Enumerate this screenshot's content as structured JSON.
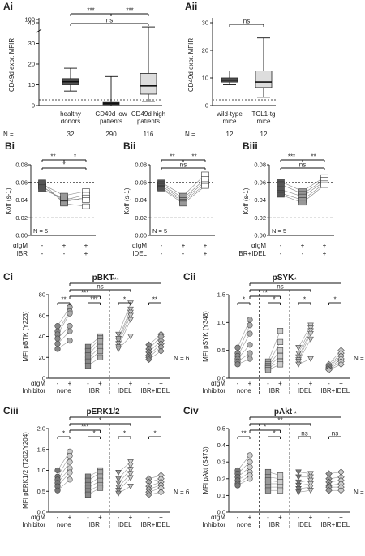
{
  "chart_data": [
    {
      "panel": "Ai",
      "type": "box",
      "ylabel": "CD49d expr. MFIR",
      "yticks": [
        "0",
        "10",
        "20",
        "30",
        "40",
        "100"
      ],
      "categories": [
        "healthy donors",
        "CD49d low patients",
        "CD49d high patients"
      ],
      "n_label": "N =",
      "n": [
        "32",
        "290",
        "116"
      ],
      "boxes": [
        {
          "min": 7,
          "q1": 10,
          "median": 11.5,
          "q3": 13,
          "max": 18,
          "fill": "#555555"
        },
        {
          "min": 0,
          "q1": 0.5,
          "median": 1,
          "q3": 1.5,
          "max": 14,
          "fill": "#555555"
        },
        {
          "min": 2,
          "q1": 5.5,
          "median": 9.5,
          "q3": 15.5,
          "max": 38,
          "fill": "#dddddd"
        }
      ],
      "significance": [
        {
          "from": 0,
          "to": 1,
          "label": "***"
        },
        {
          "from": 1,
          "to": 2,
          "label": "***"
        },
        {
          "from": 0,
          "to": 2,
          "label": "ns"
        }
      ]
    },
    {
      "panel": "Aii",
      "type": "box",
      "ylabel": "CD49d expr. MFIR",
      "yticks": [
        "0",
        "10",
        "20",
        "30"
      ],
      "categories": [
        "wild-type mice",
        "TCL1-tg mice"
      ],
      "n_label": "N =",
      "n": [
        "12",
        "12"
      ],
      "boxes": [
        {
          "min": 7.5,
          "q1": 8.5,
          "median": 9.2,
          "q3": 10,
          "max": 12.5,
          "fill": "#555555"
        },
        {
          "min": 3,
          "q1": 6.5,
          "median": 8.5,
          "q3": 12.5,
          "max": 24.5,
          "fill": "#dddddd"
        }
      ],
      "significance": [
        {
          "from": 0,
          "to": 1,
          "label": "ns"
        }
      ]
    },
    {
      "panel": "Bi",
      "type": "paired",
      "ylabel": "Koff (s-1)",
      "yticks": [
        "0.00",
        "0.02",
        "0.04",
        "0.06",
        "0.08"
      ],
      "ylim": [
        0,
        0.08
      ],
      "n_label": "N = 5",
      "treat_rows": [
        {
          "label": "αIgM",
          "values": [
            "-",
            "+",
            "+"
          ]
        },
        {
          "label": "IBR",
          "values": [
            "-",
            "-",
            "+"
          ]
        }
      ],
      "groups": [
        {
          "values": [
            0.058,
            0.055,
            0.056,
            0.052,
            0.06
          ],
          "fill": "#555555"
        },
        {
          "values": [
            0.045,
            0.04,
            0.038,
            0.042,
            0.036
          ],
          "fill": "#999999"
        },
        {
          "values": [
            0.05,
            0.046,
            0.043,
            0.04,
            0.033
          ],
          "fill": "#ffffff"
        }
      ],
      "significance": [
        {
          "from": 0,
          "to": 1,
          "label": "**"
        },
        {
          "from": 1,
          "to": 2,
          "label": "*"
        },
        {
          "from": 0,
          "to": 2,
          "label": "*"
        }
      ]
    },
    {
      "panel": "Bii",
      "type": "paired",
      "ylabel": "Koff (s-1)",
      "yticks": [
        "0.00",
        "0.02",
        "0.04",
        "0.06",
        "0.08"
      ],
      "ylim": [
        0,
        0.08
      ],
      "n_label": "N = 5",
      "treat_rows": [
        {
          "label": "αIgM",
          "values": [
            "-",
            "+",
            "+"
          ]
        },
        {
          "label": "IDEL",
          "values": [
            "-",
            "-",
            "+"
          ]
        }
      ],
      "groups": [
        {
          "values": [
            0.06,
            0.058,
            0.056,
            0.054,
            0.053
          ],
          "fill": "#555555"
        },
        {
          "values": [
            0.045,
            0.042,
            0.04,
            0.038,
            0.036
          ],
          "fill": "#999999"
        },
        {
          "values": [
            0.069,
            0.064,
            0.061,
            0.058,
            0.056
          ],
          "fill": "#ffffff"
        }
      ],
      "significance": [
        {
          "from": 0,
          "to": 1,
          "label": "**"
        },
        {
          "from": 1,
          "to": 2,
          "label": "**"
        },
        {
          "from": 0,
          "to": 2,
          "label": "ns"
        }
      ]
    },
    {
      "panel": "Biii",
      "type": "paired",
      "ylabel": "Koff (s-1)",
      "yticks": [
        "0.00",
        "0.02",
        "0.04",
        "0.06",
        "0.08"
      ],
      "ylim": [
        0,
        0.08
      ],
      "n_label": "N = 5",
      "treat_rows": [
        {
          "label": "αIgM",
          "values": [
            "-",
            "+",
            "+"
          ]
        },
        {
          "label": "IBR+IDEL",
          "values": [
            "-",
            "-",
            "+"
          ]
        }
      ],
      "groups": [
        {
          "values": [
            0.061,
            0.058,
            0.052,
            0.048,
            0.046
          ],
          "fill": "#555555"
        },
        {
          "values": [
            0.05,
            0.047,
            0.044,
            0.04,
            0.037
          ],
          "fill": "#999999"
        },
        {
          "values": [
            0.066,
            0.063,
            0.061,
            0.059,
            0.057
          ],
          "fill": "#ffffff"
        }
      ],
      "significance": [
        {
          "from": 0,
          "to": 1,
          "label": "***"
        },
        {
          "from": 1,
          "to": 2,
          "label": "**"
        },
        {
          "from": 0,
          "to": 2,
          "label": "ns"
        }
      ]
    },
    {
      "panel": "Ci",
      "type": "grouped_paired",
      "title": "pBKT",
      "ylabel": "MFI pBTK (Y223)",
      "yticks": [
        "0",
        "20",
        "40",
        "60",
        "80"
      ],
      "ylim": [
        0,
        80
      ],
      "n_label": "N = 6",
      "treat_labels": [
        "αIgM",
        "Inhibitor"
      ],
      "inhibitors": [
        "none",
        "IBR",
        "IDEL",
        "IBR+IDEL"
      ],
      "groups": [
        {
          "minus": [
            50,
            45,
            42,
            38,
            33,
            28
          ],
          "plus": [
            68,
            64,
            62,
            50,
            45,
            36
          ],
          "shape": "circle",
          "fill": "#888888"
        },
        {
          "minus": [
            30,
            26,
            22,
            19,
            16,
            12
          ],
          "plus": [
            40,
            38,
            35,
            30,
            26,
            20
          ],
          "shape": "square",
          "fill": "#888888"
        },
        {
          "minus": [
            42,
            38,
            36,
            33,
            30,
            28
          ],
          "plus": [
            72,
            66,
            63,
            60,
            56,
            40
          ],
          "shape": "triangle",
          "fill": "#aaaaaa"
        },
        {
          "minus": [
            32,
            28,
            25,
            22,
            20,
            18
          ],
          "plus": [
            42,
            40,
            36,
            33,
            30,
            26
          ],
          "shape": "diamond",
          "fill": "#888888"
        }
      ],
      "significance": [
        {
          "a": 0,
          "b": 1,
          "label": "**",
          "level": 1
        },
        {
          "a": 2,
          "b": 3,
          "label": "***",
          "level": 1
        },
        {
          "a": 4,
          "b": 5,
          "label": "*",
          "level": 1
        },
        {
          "a": 6,
          "b": 7,
          "label": "**",
          "level": 1
        },
        {
          "a": 1,
          "b": 3,
          "label": "***",
          "level": 2
        },
        {
          "a": 1,
          "b": 5,
          "label": "ns",
          "level": 3
        },
        {
          "a": 1,
          "b": 7,
          "label": "***",
          "level": 4
        }
      ]
    },
    {
      "panel": "Cii",
      "type": "grouped_paired",
      "title": "pSYK",
      "ylabel": "MFI pSYK (Y348)",
      "yticks": [
        "0.0",
        "0.5",
        "1.0",
        "1.5"
      ],
      "ylim": [
        0,
        1.5
      ],
      "n_label": "N = 6",
      "treat_labels": [
        "αIgM",
        "Inhibitor"
      ],
      "inhibitors": [
        "none",
        "IBR",
        "IDEL",
        "IBR+IDEL"
      ],
      "groups": [
        {
          "minus": [
            0.55,
            0.45,
            0.4,
            0.35,
            0.3,
            0.25
          ],
          "plus": [
            1.05,
            0.95,
            0.8,
            0.6,
            0.45,
            0.35
          ],
          "shape": "circle",
          "fill": "#888888"
        },
        {
          "minus": [
            0.3,
            0.25,
            0.22,
            0.2,
            0.18,
            0.15
          ],
          "plus": [
            0.85,
            0.65,
            0.5,
            0.4,
            0.3,
            0.25
          ],
          "shape": "square",
          "fill": "#aaaaaa"
        },
        {
          "minus": [
            0.55,
            0.45,
            0.38,
            0.33,
            0.3,
            0.25
          ],
          "plus": [
            0.95,
            0.9,
            0.85,
            0.8,
            0.7,
            0.35
          ],
          "shape": "triangle",
          "fill": "#bbbbbb"
        },
        {
          "minus": [
            0.25,
            0.22,
            0.2,
            0.18,
            0.16,
            0.15
          ],
          "plus": [
            0.5,
            0.45,
            0.4,
            0.35,
            0.3,
            0.25
          ],
          "shape": "diamond",
          "fill": "#bbbbbb"
        }
      ],
      "significance": [
        {
          "a": 0,
          "b": 1,
          "label": "*",
          "level": 1
        },
        {
          "a": 2,
          "b": 3,
          "label": "*",
          "level": 1
        },
        {
          "a": 4,
          "b": 5,
          "label": "*",
          "level": 1
        },
        {
          "a": 6,
          "b": 7,
          "label": "*",
          "level": 1
        },
        {
          "a": 1,
          "b": 3,
          "label": "**",
          "level": 2
        },
        {
          "a": 1,
          "b": 5,
          "label": "ns",
          "level": 3
        },
        {
          "a": 1,
          "b": 7,
          "label": "*",
          "level": 4
        }
      ]
    },
    {
      "panel": "Ciii",
      "type": "grouped_paired",
      "title": "pERK1/2",
      "ylabel": "MFI pERK1/2 (T202/Y204)",
      "yticks": [
        "0.0",
        "0.5",
        "1.0",
        "1.5",
        "2.0"
      ],
      "ylim": [
        0,
        2.0
      ],
      "n_label": "N = 6",
      "treat_labels": [
        "αIgM",
        "Inhibitor"
      ],
      "inhibitors": [
        "none",
        "IBR",
        "IDEL",
        "IBR+IDEL"
      ],
      "groups": [
        {
          "minus": [
            1.0,
            0.85,
            0.78,
            0.7,
            0.62,
            0.52
          ],
          "plus": [
            1.45,
            1.35,
            1.2,
            1.05,
            0.95,
            0.78
          ],
          "shape": "circle",
          "fill": "#777777"
        },
        {
          "minus": [
            0.85,
            0.75,
            0.65,
            0.58,
            0.5,
            0.42
          ],
          "plus": [
            1.0,
            0.95,
            0.85,
            0.75,
            0.65,
            0.58
          ],
          "shape": "square",
          "fill": "#888888"
        },
        {
          "minus": [
            0.95,
            0.8,
            0.7,
            0.6,
            0.52,
            0.45
          ],
          "plus": [
            1.2,
            1.12,
            1.02,
            0.92,
            0.82,
            0.62
          ],
          "shape": "triangle",
          "fill": "#999999"
        },
        {
          "minus": [
            0.8,
            0.72,
            0.62,
            0.55,
            0.48,
            0.42
          ],
          "plus": [
            0.88,
            0.8,
            0.72,
            0.65,
            0.58,
            0.48
          ],
          "shape": "diamond",
          "fill": "#aaaaaa"
        }
      ],
      "significance": [
        {
          "a": 0,
          "b": 1,
          "label": "*",
          "level": 1
        },
        {
          "a": 2,
          "b": 3,
          "label": "*",
          "level": 1
        },
        {
          "a": 4,
          "b": 5,
          "label": "*",
          "level": 1
        },
        {
          "a": 6,
          "b": 7,
          "label": "*",
          "level": 1
        },
        {
          "a": 1,
          "b": 3,
          "label": "***",
          "level": 2
        },
        {
          "a": 1,
          "b": 5,
          "label": "*",
          "level": 3
        },
        {
          "a": 1,
          "b": 7,
          "label": "**",
          "level": 4
        }
      ]
    },
    {
      "panel": "Civ",
      "type": "grouped_paired",
      "title": "pAkt",
      "ylabel": "MFI pAkt (S473)",
      "yticks": [
        "0.0",
        "0.1",
        "0.2",
        "0.3",
        "0.4",
        "0.5"
      ],
      "ylim": [
        0,
        0.5
      ],
      "n_label": "N = 6",
      "treat_labels": [
        "αIgM",
        "Inhibitor"
      ],
      "inhibitors": [
        "none",
        "IBR",
        "IDEL",
        "IBR+IDEL"
      ],
      "groups": [
        {
          "minus": [
            0.25,
            0.23,
            0.21,
            0.19,
            0.17,
            0.16
          ],
          "plus": [
            0.34,
            0.3,
            0.27,
            0.24,
            0.22,
            0.2
          ],
          "shape": "circle",
          "fill": "#777777"
        },
        {
          "minus": [
            0.24,
            0.21,
            0.19,
            0.17,
            0.15,
            0.13
          ],
          "plus": [
            0.22,
            0.2,
            0.18,
            0.17,
            0.15,
            0.13
          ],
          "shape": "square",
          "fill": "#999999"
        },
        {
          "minus": [
            0.24,
            0.21,
            0.18,
            0.16,
            0.14,
            0.12
          ],
          "plus": [
            0.23,
            0.21,
            0.19,
            0.17,
            0.15,
            0.13
          ],
          "shape": "triangle",
          "fill": "#777777"
        },
        {
          "minus": [
            0.23,
            0.2,
            0.18,
            0.16,
            0.15,
            0.13
          ],
          "plus": [
            0.24,
            0.21,
            0.19,
            0.17,
            0.15,
            0.13
          ],
          "shape": "diamond",
          "fill": "#999999"
        }
      ],
      "significance": [
        {
          "a": 0,
          "b": 1,
          "label": "**",
          "level": 1
        },
        {
          "a": 2,
          "b": 3,
          "label": "*",
          "level": 1
        },
        {
          "a": 4,
          "b": 5,
          "label": "ns",
          "level": 1
        },
        {
          "a": 6,
          "b": 7,
          "label": "ns",
          "level": 1
        },
        {
          "a": 1,
          "b": 3,
          "label": "*",
          "level": 2
        },
        {
          "a": 1,
          "b": 5,
          "label": "**",
          "level": 3
        },
        {
          "a": 1,
          "b": 7,
          "label": "*",
          "level": 4
        }
      ]
    }
  ]
}
